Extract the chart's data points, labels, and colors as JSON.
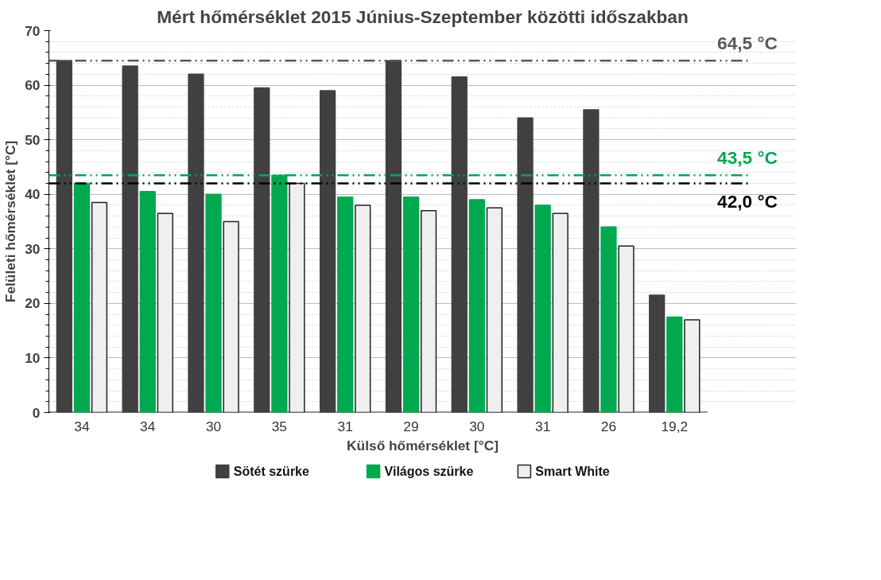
{
  "chart_data": {
    "type": "bar",
    "title": "Mért hőmérséklet 2015 Június-Szeptember közötti időszakban",
    "xlabel": "Külső hőmérséklet [°C]",
    "ylabel": "Felületi hőmérséklet [°C]",
    "categories": [
      "34",
      "34",
      "30",
      "35",
      "31",
      "29",
      "30",
      "31",
      "26",
      "19,2"
    ],
    "series": [
      {
        "name": "Sötét szürke",
        "color": "#404040",
        "values": [
          64.5,
          63.5,
          62,
          59.5,
          59,
          64.5,
          61.5,
          54,
          55.5,
          21.5
        ]
      },
      {
        "name": "Világos szürke",
        "color": "#00a84f",
        "values": [
          42,
          40.5,
          40,
          43.5,
          39.5,
          39.5,
          39,
          38,
          34,
          17.5
        ]
      },
      {
        "name": "Smart White",
        "color": "#efefef",
        "values": [
          38.5,
          36.5,
          35,
          42,
          38,
          37,
          37.5,
          36.5,
          30.5,
          17
        ]
      }
    ],
    "ylim": [
      0,
      70
    ],
    "yticks": [
      0,
      10,
      20,
      30,
      40,
      50,
      60,
      70
    ],
    "grid": "y",
    "legend": "bottom",
    "ref_lines": [
      {
        "axis": "y",
        "value": 64.5,
        "label": "64,5 °C",
        "color": "#595959",
        "line_style": "dashed"
      },
      {
        "axis": "y",
        "value": 43.5,
        "label": "43,5 °C",
        "color": "#00a84f",
        "line_style": "dashed"
      },
      {
        "axis": "y",
        "value": 42.0,
        "label": "42,0 °C",
        "color": "#000000",
        "line_style": "dashed"
      }
    ]
  }
}
